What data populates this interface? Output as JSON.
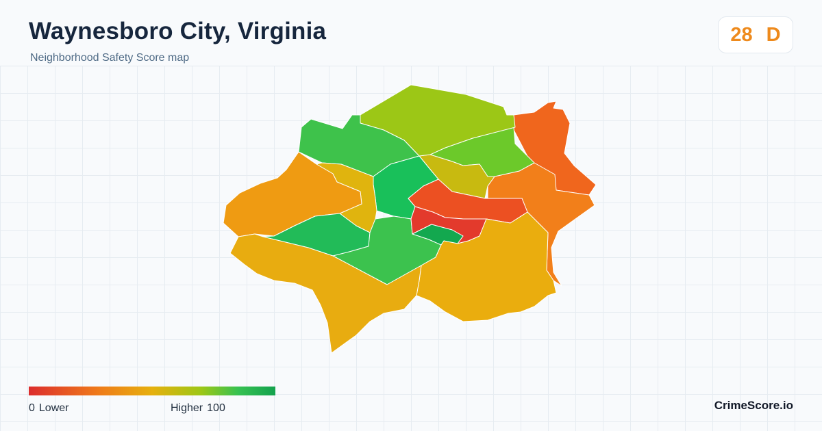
{
  "header": {
    "title": "Waynesboro City, Virginia",
    "subtitle": "Neighborhood Safety Score map"
  },
  "score": {
    "value": "28",
    "grade": "D",
    "color": "#ee8a1c"
  },
  "legend": {
    "min_value": "0",
    "min_label": "Lower",
    "max_label": "Higher",
    "max_value": "100",
    "colors": [
      "#dc2d2d",
      "#ef7a1a",
      "#e6b00e",
      "#9cc716",
      "#36c151",
      "#14a24e"
    ]
  },
  "brand": "CrimeScore.io",
  "neighborhoods": [
    {
      "id": "north-center",
      "color": "#9cc716"
    },
    {
      "id": "northwest",
      "color": "#3ec24b"
    },
    {
      "id": "northeast-inner",
      "color": "#6cc92a"
    },
    {
      "id": "far-northeast",
      "color": "#f0661d"
    },
    {
      "id": "west",
      "color": "#ef9b12"
    },
    {
      "id": "west-inner",
      "color": "#e0b40e"
    },
    {
      "id": "center-green",
      "color": "#19c05a"
    },
    {
      "id": "center-olive",
      "color": "#c8ba10"
    },
    {
      "id": "east",
      "color": "#f27f1a"
    },
    {
      "id": "downtown-north",
      "color": "#ec5022"
    },
    {
      "id": "downtown-south",
      "color": "#e33a2c"
    },
    {
      "id": "downtown-green",
      "color": "#13a84f"
    },
    {
      "id": "southwest-green",
      "color": "#22bb58"
    },
    {
      "id": "south-green",
      "color": "#3cc24e"
    },
    {
      "id": "south",
      "color": "#e8ac10"
    },
    {
      "id": "southeast",
      "color": "#eaad0e"
    }
  ]
}
